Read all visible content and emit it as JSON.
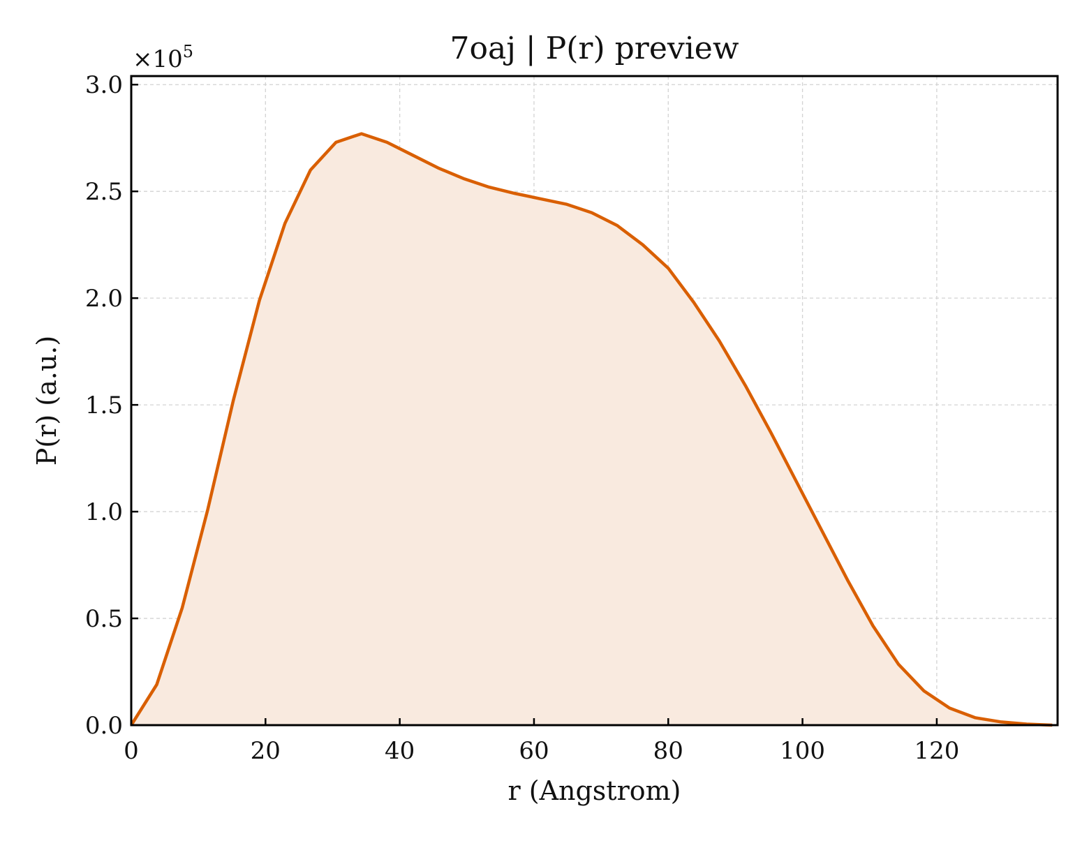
{
  "chart_data": {
    "type": "area",
    "title": "7oaj | P(r) preview",
    "xlabel": "r (Angstrom)",
    "ylabel": "P(r) (a.u.)",
    "y_multiplier_label": "×10",
    "y_multiplier_exponent": "5",
    "xlim": [
      0,
      138
    ],
    "ylim": [
      0,
      3.04
    ],
    "y_scale": 100000,
    "x_ticks": [
      0,
      20,
      40,
      60,
      80,
      100,
      120
    ],
    "x_tick_labels": [
      "0",
      "20",
      "40",
      "60",
      "80",
      "100",
      "120"
    ],
    "y_ticks": [
      0,
      0.5,
      1.0,
      1.5,
      2.0,
      2.5,
      3.0
    ],
    "y_tick_labels": [
      "0.0",
      "0.5",
      "1.0",
      "1.5",
      "2.0",
      "2.5",
      "3.0"
    ],
    "grid": true,
    "colors": {
      "line": "#d95f02",
      "fill": "#f9eadf",
      "grid": "#d3d3d3",
      "axes": "#000000"
    },
    "series": [
      {
        "x": [
          0,
          3.8,
          7.6,
          11.4,
          15.2,
          19.1,
          22.9,
          26.7,
          30.5,
          34.3,
          38.1,
          41.9,
          45.7,
          49.5,
          53.3,
          57.2,
          61.0,
          64.8,
          68.6,
          72.4,
          76.2,
          80.0,
          83.8,
          87.6,
          91.5,
          95.3,
          99.1,
          102.9,
          106.7,
          110.5,
          114.3,
          118.1,
          121.9,
          125.7,
          129.6,
          133.4,
          137.2
        ],
        "values": [
          0,
          0.19,
          0.55,
          1.01,
          1.52,
          1.99,
          2.35,
          2.6,
          2.73,
          2.77,
          2.73,
          2.67,
          2.61,
          2.56,
          2.52,
          2.49,
          2.465,
          2.44,
          2.4,
          2.34,
          2.25,
          2.14,
          1.98,
          1.8,
          1.59,
          1.37,
          1.14,
          0.91,
          0.68,
          0.465,
          0.285,
          0.16,
          0.08,
          0.035,
          0.015,
          0.005,
          0.0
        ]
      }
    ]
  }
}
